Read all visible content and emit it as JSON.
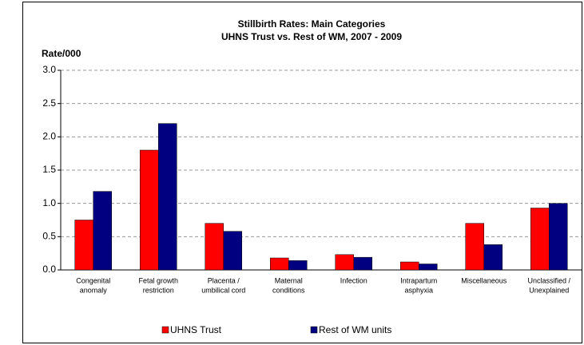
{
  "chart_data": {
    "type": "bar",
    "title": "Stillbirth Rates: Main Categories",
    "subtitle": "UHNS Trust vs. Rest of WM, 2007 - 2009",
    "y_label": "Rate/000",
    "categories": [
      [
        "Congenital",
        "anomaly"
      ],
      [
        "Fetal growth",
        "restriction"
      ],
      [
        "Placenta /",
        "umbilical cord"
      ],
      [
        "Maternal",
        "conditions"
      ],
      [
        "Infection"
      ],
      [
        "Intrapartum",
        "asphyxia"
      ],
      [
        "Miscellaneous"
      ],
      [
        "Unclassified /",
        "Unexplained"
      ]
    ],
    "series": [
      {
        "name": "UHNS Trust",
        "color": "#ff0000",
        "values": [
          0.75,
          1.8,
          0.7,
          0.18,
          0.23,
          0.12,
          0.7,
          0.93
        ]
      },
      {
        "name": "Rest of WM units",
        "color": "#000080",
        "values": [
          1.18,
          2.2,
          0.58,
          0.14,
          0.19,
          0.09,
          0.38,
          1.0
        ]
      }
    ],
    "ylim": [
      0,
      3
    ],
    "yticks": [
      {
        "value": 0,
        "label": "0.0"
      },
      {
        "value": 0.5,
        "label": "0.5"
      },
      {
        "value": 1,
        "label": "1.0"
      },
      {
        "value": 1.5,
        "label": "1.5"
      },
      {
        "value": 2,
        "label": "2.0"
      },
      {
        "value": 2.5,
        "label": "2.5"
      },
      {
        "value": 3,
        "label": "3.0"
      }
    ],
    "grid": true
  }
}
